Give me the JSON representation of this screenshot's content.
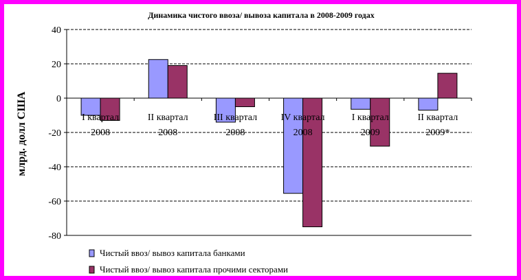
{
  "chart_data": {
    "type": "bar",
    "title": "Динамика чистого ввоза/  вывоза капитала в 2008-2009 годах",
    "ylabel": "млрд. долл США",
    "xlabel": "",
    "ylim": [
      -80,
      40
    ],
    "yticks": [
      40,
      20,
      0,
      -20,
      -40,
      -60,
      -80
    ],
    "grid": true,
    "legend_position": "bottom-left",
    "categories": [
      [
        "I квартал",
        "2008"
      ],
      [
        "II квартал",
        "2008"
      ],
      [
        "III квартал",
        "2008"
      ],
      [
        "IV квартал",
        "2008"
      ],
      [
        "I квартал",
        "2009"
      ],
      [
        "II квартал",
        "2009*"
      ]
    ],
    "series": [
      {
        "name": "Чистый ввоз/ вывоз капитала банками",
        "color": "#9999ff",
        "values": [
          -10,
          22.5,
          -14,
          -55.5,
          -6.5,
          -7
        ]
      },
      {
        "name": "Чистый ввоз/ вывоз капитала прочими секторами",
        "color": "#993366",
        "values": [
          -13,
          19,
          -5,
          -75,
          -28,
          14.5
        ]
      }
    ]
  }
}
